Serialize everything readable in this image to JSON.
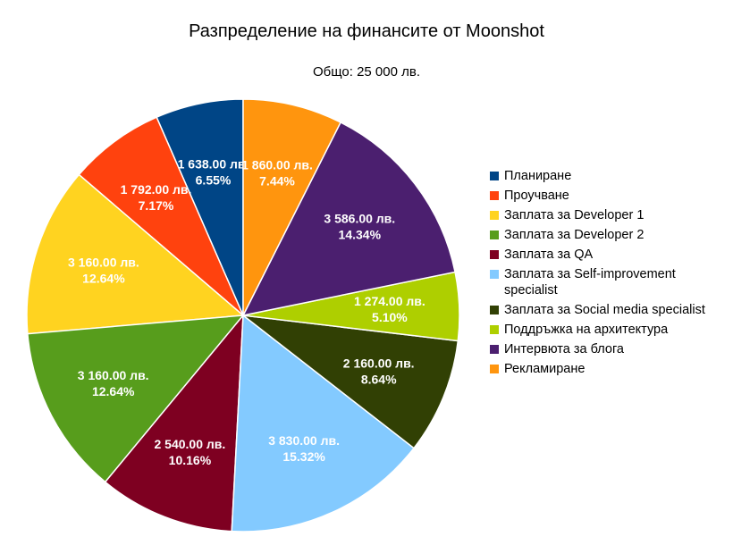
{
  "chart_data": {
    "type": "pie",
    "title": "Разпределение на финансите от Moonshot",
    "subtitle": "Общо: 25 000 лв.",
    "legend_position": "right",
    "slices": [
      {
        "name": "Планиране",
        "value": 1638.0,
        "value_label": "1 638.00 лв.",
        "percent_label": "6.55%",
        "color": "#004586"
      },
      {
        "name": "Проучване",
        "value": 1792.0,
        "value_label": "1 792.00 лв.",
        "percent_label": "7.17%",
        "color": "#ff420e"
      },
      {
        "name": "Заплата за Developer 1",
        "value": 3160.0,
        "value_label": "3 160.00 лв.",
        "percent_label": "12.64%",
        "color": "#ffd320"
      },
      {
        "name": "Заплата за Developer 2",
        "value": 3160.0,
        "value_label": "3 160.00 лв.",
        "percent_label": "12.64%",
        "color": "#579d1c"
      },
      {
        "name": "Заплата за QA",
        "value": 2540.0,
        "value_label": "2 540.00 лв.",
        "percent_label": "10.16%",
        "color": "#7e0021"
      },
      {
        "name": "Заплата за Self-improvement specialist",
        "value": 3830.0,
        "value_label": "3 830.00 лв.",
        "percent_label": "15.32%",
        "color": "#83caff"
      },
      {
        "name": "Заплата за Social media specialist",
        "value": 2160.0,
        "value_label": "2 160.00 лв.",
        "percent_label": "8.64%",
        "color": "#314004"
      },
      {
        "name": "Поддръжка на архитектура",
        "value": 1274.0,
        "value_label": "1 274.00 лв.",
        "percent_label": "5.10%",
        "color": "#aecf00"
      },
      {
        "name": "Интервюта за блога",
        "value": 3586.0,
        "value_label": "3 586.00 лв.",
        "percent_label": "14.34%",
        "color": "#4b1f6f"
      },
      {
        "name": "Рекламиране",
        "value": 1860.0,
        "value_label": "1 860.00 лв.",
        "percent_label": "7.44%",
        "color": "#ff950e"
      }
    ]
  }
}
